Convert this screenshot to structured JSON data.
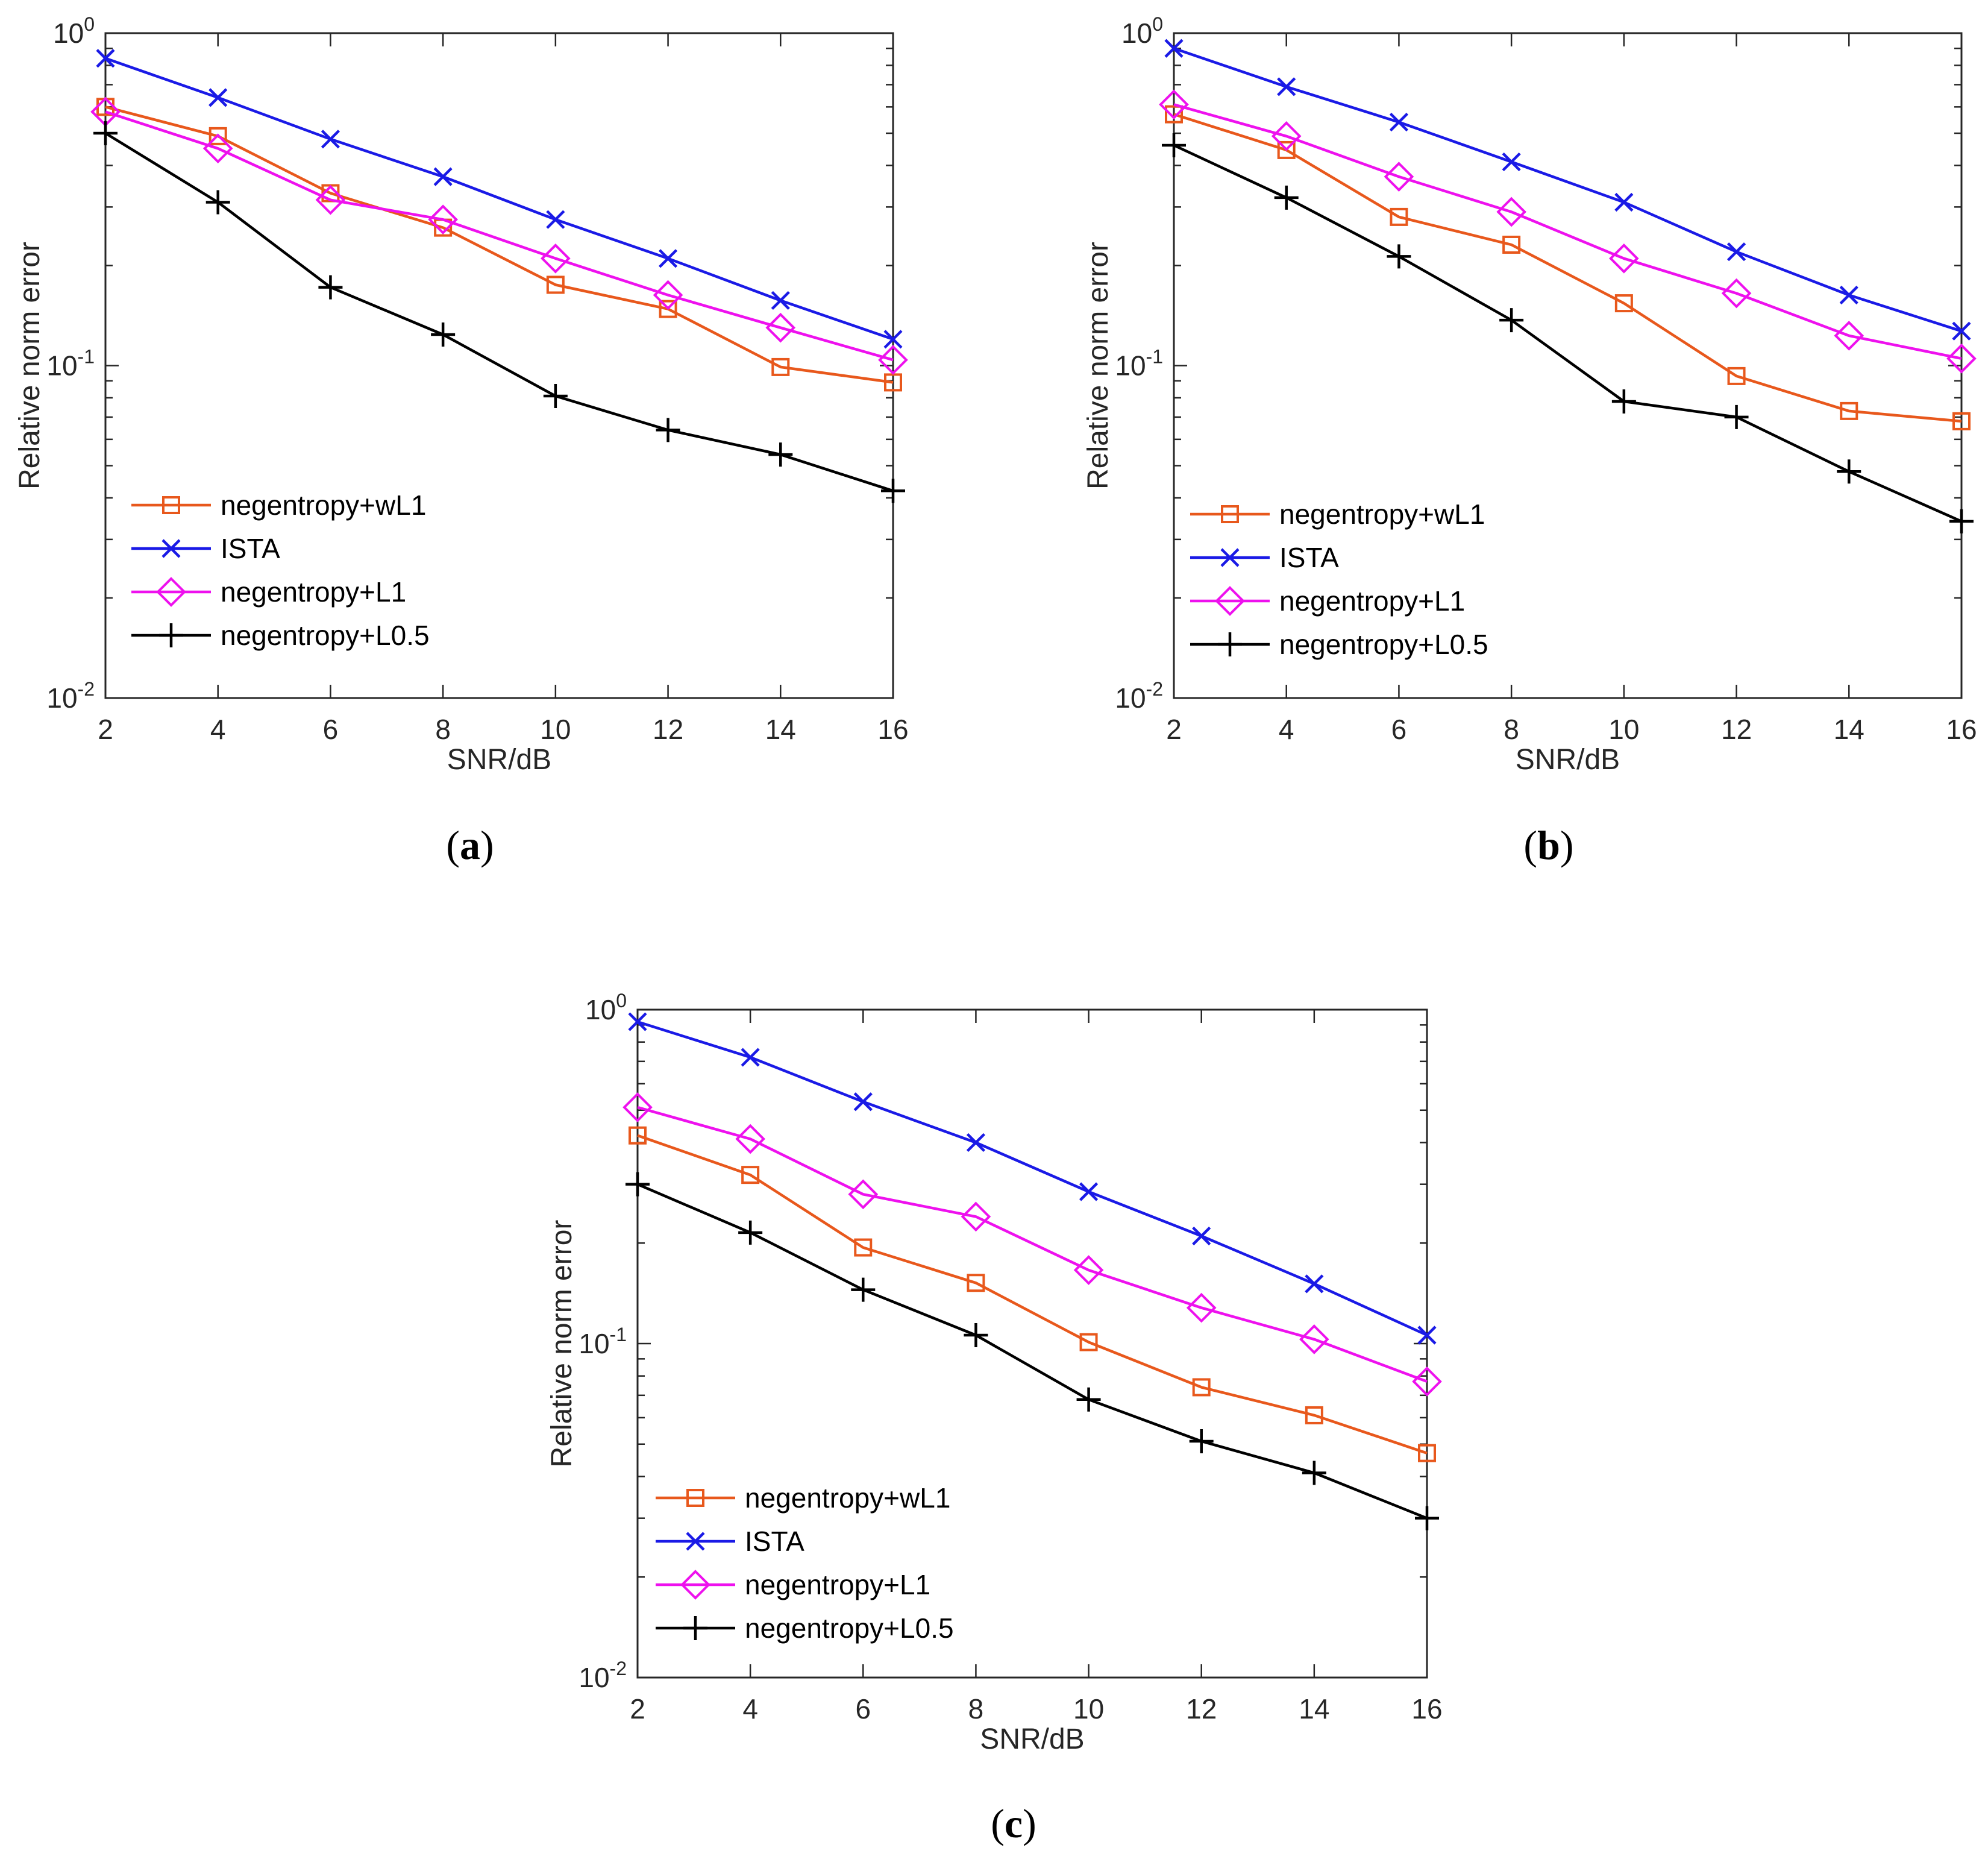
{
  "chart_data": [
    {
      "type": "line",
      "panel": "(a)",
      "panel_letter": "a",
      "xlabel": "SNR/dB",
      "ylabel": "Relative norm error",
      "yscale": "log",
      "xlim": [
        2,
        16
      ],
      "ylim": [
        0.01,
        1
      ],
      "xticks": [
        "2",
        "4",
        "6",
        "8",
        "10",
        "12",
        "14",
        "16"
      ],
      "yticks": [
        {
          "base": "10",
          "exp": "-2"
        },
        {
          "base": "10",
          "exp": "-1"
        },
        {
          "base": "10",
          "exp": "0"
        }
      ],
      "legend_position": "bottom-left",
      "x": [
        2,
        4,
        6,
        8,
        10,
        12,
        14,
        16
      ],
      "series": [
        {
          "name": "negentropy+wL1",
          "color": "#e8581c",
          "marker": "square",
          "values": [
            0.6,
            0.49,
            0.33,
            0.26,
            0.175,
            0.148,
            0.099,
            0.089
          ]
        },
        {
          "name": "ISTA",
          "color": "#1a1ae6",
          "marker": "x",
          "values": [
            0.84,
            0.64,
            0.48,
            0.37,
            0.275,
            0.21,
            0.157,
            0.12
          ]
        },
        {
          "name": "negentropy+L1",
          "color": "#ee11ee",
          "marker": "diamond",
          "values": [
            0.58,
            0.45,
            0.315,
            0.275,
            0.21,
            0.163,
            0.13,
            0.104
          ]
        },
        {
          "name": "negentropy+L0.5",
          "color": "#000000",
          "marker": "plus",
          "values": [
            0.5,
            0.31,
            0.172,
            0.124,
            0.081,
            0.064,
            0.054,
            0.042
          ]
        }
      ]
    },
    {
      "type": "line",
      "panel": "(b)",
      "panel_letter": "b",
      "xlabel": "SNR/dB",
      "ylabel": "Relative norm error",
      "yscale": "log",
      "xlim": [
        2,
        16
      ],
      "ylim": [
        0.01,
        1
      ],
      "xticks": [
        "2",
        "4",
        "6",
        "8",
        "10",
        "12",
        "14",
        "16"
      ],
      "yticks": [
        {
          "base": "10",
          "exp": "-2"
        },
        {
          "base": "10",
          "exp": "-1"
        },
        {
          "base": "10",
          "exp": "0"
        }
      ],
      "legend_position": "bottom-left",
      "x": [
        2,
        4,
        6,
        8,
        10,
        12,
        14,
        16
      ],
      "series": [
        {
          "name": "negentropy+wL1",
          "color": "#e8581c",
          "marker": "square",
          "values": [
            0.57,
            0.445,
            0.28,
            0.231,
            0.154,
            0.093,
            0.073,
            0.068
          ]
        },
        {
          "name": "ISTA",
          "color": "#1a1ae6",
          "marker": "x",
          "values": [
            0.9,
            0.69,
            0.54,
            0.41,
            0.31,
            0.22,
            0.163,
            0.127
          ]
        },
        {
          "name": "negentropy+L1",
          "color": "#ee11ee",
          "marker": "diamond",
          "values": [
            0.61,
            0.49,
            0.37,
            0.29,
            0.21,
            0.165,
            0.123,
            0.105
          ]
        },
        {
          "name": "negentropy+L0.5",
          "color": "#000000",
          "marker": "plus",
          "values": [
            0.46,
            0.32,
            0.213,
            0.137,
            0.078,
            0.07,
            0.048,
            0.034
          ]
        }
      ]
    },
    {
      "type": "line",
      "panel": "(c)",
      "panel_letter": "c",
      "xlabel": "SNR/dB",
      "ylabel": "Relative norm error",
      "yscale": "log",
      "xlim": [
        2,
        16
      ],
      "ylim": [
        0.01,
        1
      ],
      "xticks": [
        "2",
        "4",
        "6",
        "8",
        "10",
        "12",
        "14",
        "16"
      ],
      "yticks": [
        {
          "base": "10",
          "exp": "-2"
        },
        {
          "base": "10",
          "exp": "-1"
        },
        {
          "base": "10",
          "exp": "0"
        }
      ],
      "legend_position": "bottom-left",
      "x": [
        2,
        4,
        6,
        8,
        10,
        12,
        14,
        16
      ],
      "series": [
        {
          "name": "negentropy+wL1",
          "color": "#e8581c",
          "marker": "square",
          "values": [
            0.42,
            0.32,
            0.194,
            0.152,
            0.101,
            0.074,
            0.061,
            0.047
          ]
        },
        {
          "name": "ISTA",
          "color": "#1a1ae6",
          "marker": "x",
          "values": [
            0.92,
            0.72,
            0.53,
            0.4,
            0.285,
            0.21,
            0.151,
            0.106
          ]
        },
        {
          "name": "negentropy+L1",
          "color": "#ee11ee",
          "marker": "diamond",
          "values": [
            0.51,
            0.41,
            0.28,
            0.24,
            0.166,
            0.128,
            0.103,
            0.077
          ]
        },
        {
          "name": "negentropy+L0.5",
          "color": "#000000",
          "marker": "plus",
          "values": [
            0.3,
            0.215,
            0.145,
            0.106,
            0.068,
            0.051,
            0.041,
            0.03
          ]
        }
      ]
    }
  ]
}
